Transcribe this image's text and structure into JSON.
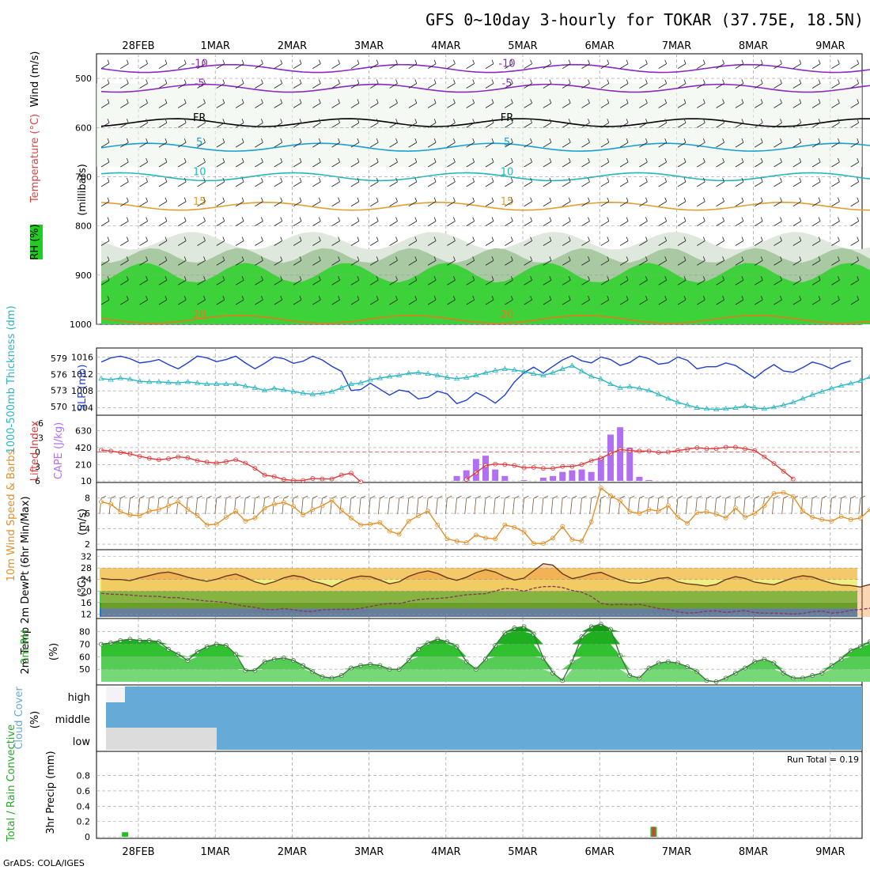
{
  "title": "GFS 0~10day 3-hourly for TOKAR (37.75E, 18.5N)",
  "footer": "GrADS: COLA/IGES",
  "colors": {
    "grid": "#9a9a9a",
    "rh_green": "#22c022",
    "temp_orange": "#e07b1e",
    "slp_blue": "#1f3fd0",
    "thick_cyan": "#2ab5c0",
    "cape_violet": "#b070f0",
    "li_red": "#e03a3a",
    "wind_orange": "#e0902a",
    "barb": "#7a5a3a",
    "cloud_blue": "#66aad8",
    "precip_green": "#22c022",
    "precip_red": "#e03a3a"
  },
  "time_axis": {
    "labels": [
      "28FEB",
      "1MAR",
      "2MAR",
      "3MAR",
      "4MAR",
      "5MAR",
      "6MAR",
      "7MAR",
      "8MAR",
      "9MAR"
    ],
    "start_day_offset": -0.45,
    "end_day_offset": 9.3
  },
  "chart_data": [
    {
      "type": "area",
      "id": "upper-air",
      "ylabel": "(millibars)",
      "side_labels": [
        "Wind (m/s)",
        "Temperature (°C)",
        "RH (%)"
      ],
      "yticks": [
        500,
        600,
        700,
        800,
        900,
        1000
      ],
      "isotherm_labels": [
        "-10",
        "-5",
        "FR",
        "5",
        "10",
        "15",
        "20"
      ],
      "rh_labels": [
        "30",
        "50",
        "70"
      ]
    },
    {
      "type": "line",
      "id": "slp-thickness",
      "left_label": "1000-500mb Thickness (dm)",
      "right_label": "SLP (mb)",
      "left_ticks": [
        570,
        573,
        576,
        579
      ],
      "right_ticks": [
        1004,
        1008,
        1012,
        1016
      ],
      "series": [
        {
          "name": "SLP",
          "axis": "right",
          "values": [
            1014.8,
            1015.8,
            1016.2,
            1015.6,
            1014.6,
            1014.9,
            1015.4,
            1014.2,
            1013.2,
            1014.6,
            1016.2,
            1015.8,
            1014.9,
            1015.4,
            1016.2,
            1014.6,
            1013.2,
            1014.5,
            1016.0,
            1015.6,
            1014.5,
            1015.0,
            1016.2,
            1015.3,
            1013.8,
            1012.6,
            1008.1,
            1008.3,
            1009.8,
            1008.4,
            1007.0,
            1008.2,
            1007.8,
            1006.1,
            1006.5,
            1007.9,
            1007.3,
            1005.0,
            1005.8,
            1007.6,
            1006.6,
            1005.1,
            1007.0,
            1010.1,
            1012.3,
            1013.6,
            1012.2,
            1013.8,
            1015.3,
            1016.3,
            1015.1,
            1014.6,
            1016.0,
            1015.4,
            1014.0,
            1014.7,
            1016.2,
            1015.6,
            1014.3,
            1014.6,
            1016.0,
            1015.2,
            1013.2,
            1013.7,
            1013.7,
            1014.6,
            1014.0,
            1012.5,
            1011.0,
            1012.8,
            1014.2,
            1012.7,
            1012.4,
            1013.5,
            1014.8,
            1014.2,
            1013.2,
            1014.4,
            1015.1
          ]
        },
        {
          "name": "Thickness",
          "axis": "left",
          "values": [
            575.2,
            575.0,
            575.3,
            575.1,
            574.7,
            574.6,
            574.6,
            574.5,
            574.4,
            574.6,
            574.4,
            574.2,
            574.2,
            574.2,
            574.2,
            573.8,
            573.5,
            573.0,
            573.4,
            573.1,
            572.8,
            572.5,
            572.3,
            572.5,
            572.8,
            573.5,
            574.2,
            574.4,
            575.0,
            575.3,
            575.6,
            575.8,
            576.2,
            576.3,
            576.1,
            575.8,
            575.4,
            575.2,
            575.4,
            575.8,
            576.3,
            576.7,
            577.0,
            576.8,
            576.5,
            576.1,
            575.8,
            576.3,
            577.0,
            577.6,
            576.6,
            575.6,
            575.1,
            574.2,
            573.5,
            573.7,
            573.4,
            573.0,
            572.3,
            571.5,
            570.8,
            570.3,
            569.8,
            569.6,
            569.5,
            569.6,
            569.8,
            570.1,
            569.8,
            569.6,
            569.9,
            570.3,
            570.8,
            571.5,
            572.2,
            572.8,
            573.4,
            573.9,
            574.3,
            574.8,
            575.5,
            576.0,
            576.7
          ]
        }
      ]
    },
    {
      "type": "bar",
      "id": "cape-li",
      "left_label": "Lifted Index",
      "right_label": "CAPE (J/kg)",
      "left_ticks": [
        6,
        3,
        0,
        -3,
        -6
      ],
      "right_ticks": [
        10,
        210,
        420,
        630
      ],
      "series": [
        {
          "name": "Lifted Index",
          "values": [
            -0.4,
            -0.2,
            0.1,
            0.4,
            0.9,
            1.3,
            1.6,
            1.4,
            1.0,
            1.2,
            1.8,
            2.1,
            2.3,
            2.0,
            1.6,
            2.3,
            3.4,
            4.8,
            5.1,
            5.7,
            5.9,
            5.9,
            5.5,
            5.6,
            5.6,
            4.8,
            4.4,
            6.2,
            null,
            null,
            null,
            null,
            null,
            null,
            null,
            null,
            null,
            null,
            5.7,
            4.3,
            2.8,
            2.5,
            2.6,
            2.8,
            3.3,
            3.2,
            3.4,
            3.4,
            3.0,
            3.0,
            2.6,
            1.8,
            1.3,
            0.3,
            -0.5,
            -0.3,
            -0.2,
            -0.2,
            0.1,
            0.0,
            -0.3,
            -0.6,
            -0.9,
            -0.7,
            -0.7,
            -1.0,
            -1.0,
            -0.7,
            -0.3,
            1.0,
            2.4,
            4.0,
            5.6
          ]
        },
        {
          "name": "CAPE",
          "values": [
            {
              "i": 37,
              "v": 70
            },
            {
              "i": 38,
              "v": 140
            },
            {
              "i": 39,
              "v": 280
            },
            {
              "i": 40,
              "v": 320
            },
            {
              "i": 41,
              "v": 150
            },
            {
              "i": 42,
              "v": 70
            },
            {
              "i": 44,
              "v": 20
            },
            {
              "i": 46,
              "v": 50
            },
            {
              "i": 47,
              "v": 70
            },
            {
              "i": 48,
              "v": 120
            },
            {
              "i": 49,
              "v": 140
            },
            {
              "i": 50,
              "v": 150
            },
            {
              "i": 51,
              "v": 120
            },
            {
              "i": 52,
              "v": 300
            },
            {
              "i": 53,
              "v": 580
            },
            {
              "i": 54,
              "v": 670
            },
            {
              "i": 55,
              "v": 420
            },
            {
              "i": 56,
              "v": 60
            },
            {
              "i": 57,
              "v": 20
            }
          ]
        }
      ]
    },
    {
      "type": "line",
      "id": "wind10m",
      "left_label": "10m Wind Speed & Barbs",
      "right_label": "(m/s)",
      "yticks": [
        2,
        4,
        6,
        8
      ],
      "series": [
        {
          "name": "Speed",
          "values": [
            7.5,
            7.2,
            6.2,
            5.8,
            5.7,
            6.3,
            6.5,
            7.0,
            7.5,
            6.5,
            5.7,
            4.5,
            4.6,
            5.5,
            6.3,
            5.0,
            5.4,
            6.7,
            7.2,
            7.4,
            6.9,
            5.8,
            6.5,
            7.0,
            7.7,
            6.4,
            5.4,
            4.5,
            4.6,
            4.8,
            3.7,
            3.3,
            5.0,
            5.7,
            6.3,
            4.5,
            2.7,
            2.4,
            2.2,
            3.2,
            2.8,
            2.7,
            4.5,
            4.2,
            3.6,
            2.1,
            2.1,
            2.8,
            4.3,
            2.6,
            2.4,
            4.9,
            9.3,
            8.3,
            7.6,
            6.2,
            6.0,
            6.5,
            6.3,
            7.0,
            5.5,
            4.7,
            6.1,
            6.2,
            5.9,
            5.4,
            6.7,
            5.5,
            6.0,
            7.0,
            8.6,
            8.7,
            8.2,
            6.3,
            5.5,
            5.2,
            5.0,
            5.6,
            5.2,
            5.4,
            6.5,
            5.5,
            5.0,
            5.0,
            4.7,
            5.7,
            6.7
          ]
        }
      ]
    },
    {
      "type": "line",
      "id": "temp2m",
      "left_label": "2m Temp 2m DewPt (6hr Min/Max)",
      "right_label": "(°C)",
      "yticks": [
        12,
        16,
        20,
        24,
        28,
        32
      ],
      "series": [
        {
          "name": "2m Temp",
          "values": [
            24.4,
            24.0,
            24.0,
            23.6,
            24.6,
            25.4,
            26.2,
            26.6,
            25.8,
            24.8,
            24.0,
            23.4,
            24.1,
            25.2,
            25.9,
            24.7,
            23.2,
            22.3,
            23.2,
            24.6,
            25.4,
            24.8,
            23.4,
            22.6,
            21.5,
            23.2,
            24.5,
            25.2,
            25.0,
            23.8,
            22.5,
            23.2,
            25.1,
            26.3,
            27.0,
            26.1,
            24.6,
            23.7,
            24.8,
            26.4,
            27.4,
            26.6,
            25.0,
            23.8,
            24.5,
            27.0,
            29.5,
            29.0,
            26.0,
            24.3,
            25.0,
            26.0,
            26.5,
            25.1,
            23.8,
            22.9,
            22.7,
            23.4,
            24.4,
            24.7,
            23.2,
            22.5,
            22.2,
            21.7,
            22.3,
            24.0,
            25.0,
            24.4,
            23.1,
            22.6,
            22.2,
            23.4,
            24.6,
            25.3,
            24.9,
            23.7,
            22.7,
            22.1,
            21.9,
            21.4,
            22.3,
            23.9,
            24.0
          ]
        },
        {
          "name": "2m DewPt",
          "values": [
            19.2,
            18.9,
            18.8,
            18.6,
            18.3,
            18.2,
            18.1,
            17.7,
            17.7,
            17.2,
            16.9,
            16.5,
            16.3,
            16.0,
            15.3,
            14.7,
            14.3,
            13.6,
            13.5,
            13.9,
            13.5,
            13.0,
            12.9,
            13.5,
            13.6,
            13.7,
            13.6,
            14.0,
            14.6,
            15.3,
            15.7,
            15.6,
            16.4,
            17.0,
            17.3,
            17.4,
            17.7,
            18.2,
            18.7,
            18.9,
            19.1,
            20.0,
            20.9,
            20.7,
            19.9,
            21.0,
            21.5,
            21.6,
            21.2,
            20.2,
            19.6,
            18.1,
            15.7,
            15.2,
            15.4,
            15.2,
            15.4,
            14.7,
            13.9,
            13.6,
            12.8,
            12.3,
            12.5,
            13.0,
            13.1,
            12.6,
            12.9,
            13.2,
            12.5,
            12.3,
            12.3,
            12.2,
            12.0,
            12.2,
            12.8,
            13.1,
            12.3,
            12.6,
            13.3,
            13.6,
            14.0,
            14.5,
            14.8,
            15.0,
            15.0,
            15.0
          ]
        }
      ]
    },
    {
      "type": "area",
      "id": "rh2m",
      "left_label": "2m RH",
      "right_label": "(%)",
      "yticks": [
        50,
        60,
        70,
        80
      ],
      "values": [
        70,
        71,
        73,
        74,
        73,
        73,
        72,
        66,
        62,
        57,
        64,
        68,
        70,
        69,
        62,
        49,
        49,
        56,
        58,
        59,
        57,
        53,
        48,
        44,
        43,
        45,
        51,
        53,
        54,
        53,
        50,
        50,
        57,
        66,
        71,
        74,
        72,
        68,
        56,
        50,
        58,
        69,
        79,
        83,
        84,
        78,
        59,
        47,
        41,
        56,
        76,
        84,
        86,
        82,
        61,
        45,
        43,
        51,
        55,
        56,
        55,
        52,
        48,
        41,
        40,
        43,
        47,
        51,
        56,
        58,
        55,
        47,
        43,
        43,
        45,
        47,
        53,
        58,
        65,
        68,
        72,
        71,
        70
      ]
    },
    {
      "type": "bar",
      "id": "cloud",
      "left_label": "Cloud Cover",
      "right_label": "(%)",
      "rows": [
        "high",
        "middle",
        "low"
      ]
    },
    {
      "type": "bar",
      "id": "precip",
      "left_label": "Total / Rain Convective",
      "right_label": "3hr Precip (mm)",
      "yticks": [
        0,
        0.2,
        0.4,
        0.6,
        0.8
      ],
      "run_total": "Run Total = 0.19",
      "series": [
        {
          "name": "Total",
          "values": [
            {
              "i": 1,
              "v": 0.06
            },
            {
              "i": 56,
              "v": 0.13
            }
          ]
        },
        {
          "name": "Convective",
          "values": [
            {
              "i": 56,
              "v": 0.13
            }
          ]
        }
      ]
    }
  ]
}
